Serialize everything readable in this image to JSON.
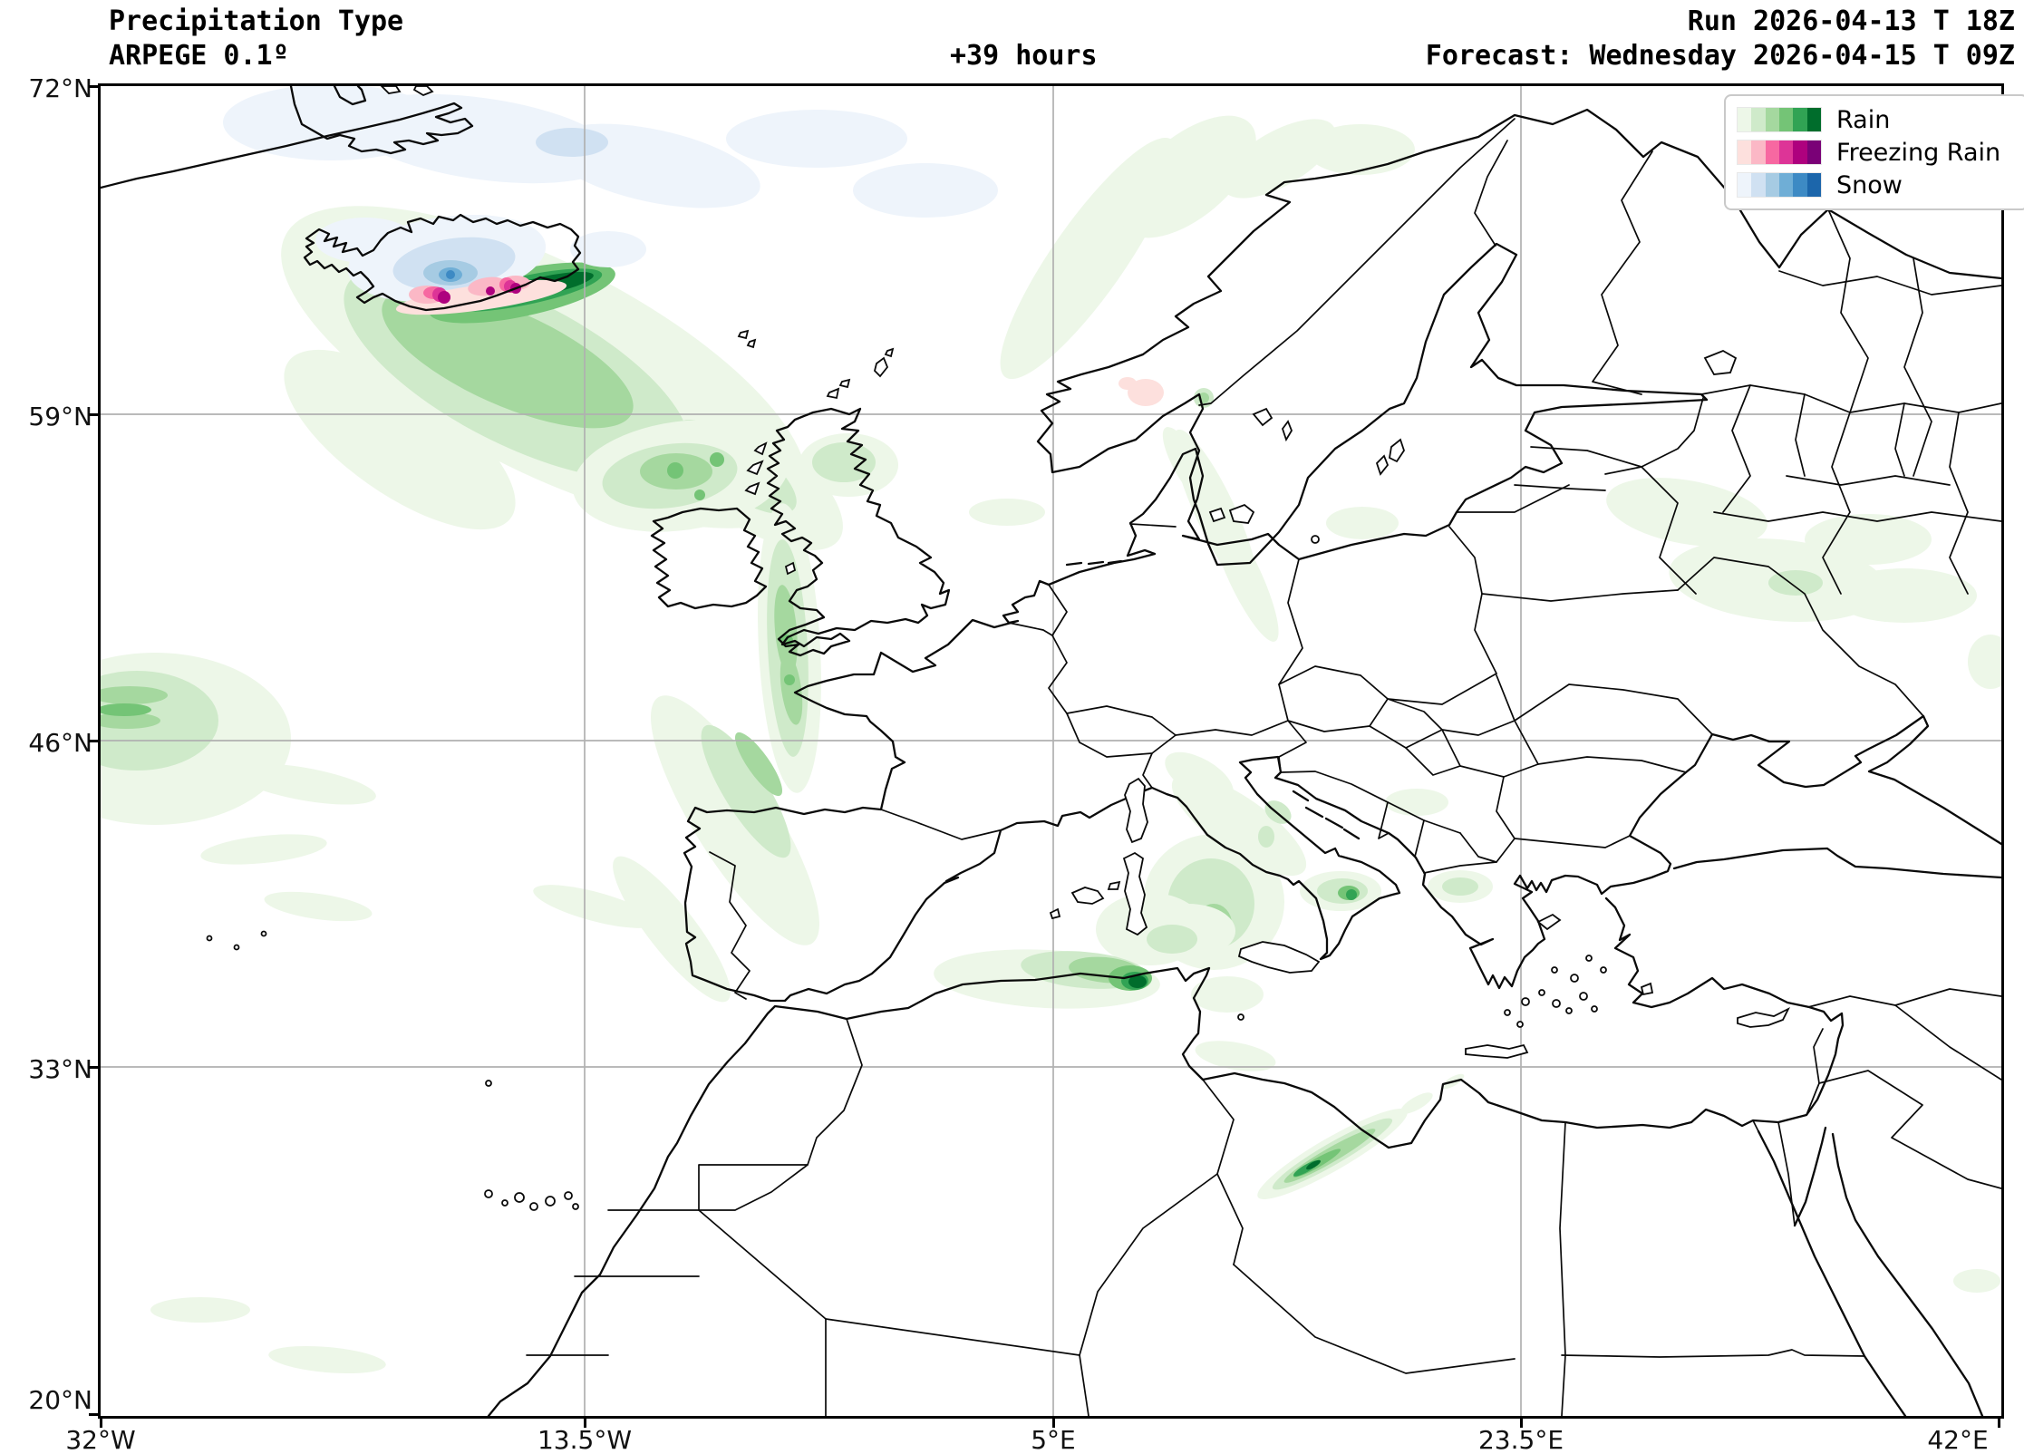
{
  "header": {
    "title": "Precipitation Type",
    "subtitle": "ARPEGE 0.1º",
    "run": "Run 2026-04-13 T 18Z",
    "lead_time": "+39 hours",
    "forecast": "Forecast: Wednesday 2026-04-15 T 09Z"
  },
  "legend": {
    "items": [
      {
        "label": "Rain"
      },
      {
        "label": "Freezing Rain"
      },
      {
        "label": "Snow"
      }
    ]
  },
  "axes": {
    "lat_ticks": [
      {
        "label": "72°N"
      },
      {
        "label": "59°N"
      },
      {
        "label": "46°N"
      },
      {
        "label": "33°N"
      },
      {
        "label": "20°N"
      }
    ],
    "lon_ticks": [
      {
        "label": "32°W"
      },
      {
        "label": "13.5°W"
      },
      {
        "label": "5°E"
      },
      {
        "label": "23.5°E"
      },
      {
        "label": "42°E"
      }
    ]
  },
  "map": {
    "extent": {
      "west": "32°W",
      "east": "42°E",
      "south": "20°N",
      "north": "72°N"
    },
    "colors": {
      "coastline": "#0a0a0a",
      "gridline": "#b0b0b0",
      "background": "#ffffff",
      "legend_border": "#c9c9c9"
    },
    "shades": {
      "r": [
        "#edf7e8",
        "#cfeaca",
        "#a5d89f",
        "#74c476",
        "#31a354",
        "#006d2c"
      ],
      "f": [
        "#fde0dd",
        "#fbb8c6",
        "#f768a1",
        "#dd3497",
        "#ae017e",
        "#7a0177"
      ],
      "s": [
        "#eef4fb",
        "#d0e1f2",
        "#a6cbe3",
        "#6faed6",
        "#3d8ac4",
        "#1c66ab"
      ]
    },
    "precipitation_regions": [
      "Snow and freezing rain over Iceland with heavy rain band along its southeast coast",
      "Rain plume from Iceland southeast toward Scotland and Irish Sea down to Biscay",
      "Rain patch at western map edge near 46N",
      "Light rain along Norway coast and over Sweden and western Russia",
      "Rain over Tyrrhenian Sea, Apennines, Puglia and Tunisia/Algeria coast",
      "Narrow rain streak over Libya"
    ]
  }
}
